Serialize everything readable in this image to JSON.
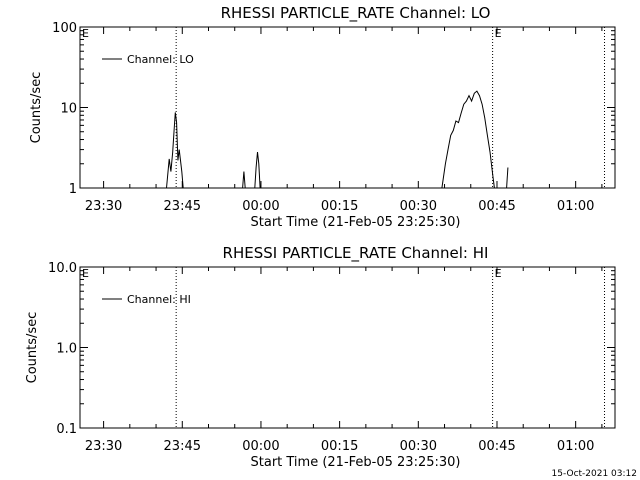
{
  "footer_timestamp": "15-Oct-2021 03:12",
  "chart_data": [
    {
      "type": "line",
      "title": "RHESSI PARTICLE_RATE Channel: LO",
      "xlabel": "Start Time (21-Feb-05 23:25:30)",
      "ylabel": "Counts/sec",
      "y_scale": "log",
      "ylim": [
        1,
        100
      ],
      "y_ticks": [
        "1",
        "10",
        "100"
      ],
      "y_tick_values": [
        1,
        10,
        100
      ],
      "xlim": [
        "23:25:30",
        "01:07:30"
      ],
      "x_ticks": [
        "23:30",
        "23:45",
        "00:00",
        "00:15",
        "00:30",
        "00:45",
        "01:00"
      ],
      "x_tick_times": [
        "23:30:00",
        "23:45:00",
        "00:00:00",
        "00:15:00",
        "00:30:00",
        "00:45:00",
        "01:00:00"
      ],
      "grid": false,
      "legend": "top-left",
      "series": [
        {
          "name": "Channel: LO",
          "color": "#000000",
          "points": [
            [
              "23:42:00",
              1
            ],
            [
              "23:42:30",
              2.3
            ],
            [
              "23:42:50",
              1.6
            ],
            [
              "23:43:10",
              2.8
            ],
            [
              "23:43:25",
              5.0
            ],
            [
              "23:43:40",
              8.7
            ],
            [
              "23:43:55",
              6.5
            ],
            [
              "23:44:10",
              2.2
            ],
            [
              "23:44:25",
              3.0
            ],
            [
              "23:44:40",
              2.2
            ],
            [
              "23:44:55",
              1.6
            ],
            [
              "23:45:10",
              1
            ],
            [
              null,
              null
            ],
            [
              "23:56:30",
              1
            ],
            [
              "23:56:45",
              1.6
            ],
            [
              "23:57:00",
              1
            ],
            [
              null,
              null
            ],
            [
              "23:58:50",
              1
            ],
            [
              "23:59:05",
              1.8
            ],
            [
              "23:59:20",
              2.8
            ],
            [
              "23:59:35",
              2.0
            ],
            [
              "23:59:50",
              1
            ],
            [
              null,
              null
            ],
            [
              "00:34:30",
              1
            ],
            [
              "00:35:10",
              2.0
            ],
            [
              "00:35:40",
              3.0
            ],
            [
              "00:36:10",
              4.5
            ],
            [
              "00:36:40",
              5.2
            ],
            [
              "00:37:10",
              6.8
            ],
            [
              "00:37:40",
              6.5
            ],
            [
              "00:38:10",
              8.5
            ],
            [
              "00:38:40",
              11
            ],
            [
              "00:39:10",
              12
            ],
            [
              "00:39:40",
              14
            ],
            [
              "00:40:10",
              12
            ],
            [
              "00:40:40",
              15
            ],
            [
              "00:41:10",
              16
            ],
            [
              "00:41:40",
              14
            ],
            [
              "00:42:10",
              11
            ],
            [
              "00:42:40",
              7.5
            ],
            [
              "00:43:10",
              4.5
            ],
            [
              "00:43:40",
              2.8
            ],
            [
              "00:44:10",
              1.5
            ],
            [
              "00:44:30",
              1
            ],
            [
              null,
              null
            ],
            [
              "00:46:50",
              1
            ],
            [
              "00:47:05",
              1.8
            ]
          ]
        }
      ],
      "markers": [
        {
          "time": "23:25:30",
          "label": "E",
          "line": false
        },
        {
          "time": "23:43:50",
          "label": "",
          "line": true
        },
        {
          "time": "00:44:10",
          "label": "E",
          "line": true
        },
        {
          "time": "01:05:30",
          "label": "",
          "line": true
        }
      ]
    },
    {
      "type": "line",
      "title": "RHESSI PARTICLE_RATE Channel: HI",
      "xlabel": "Start Time (21-Feb-05 23:25:30)",
      "ylabel": "Counts/sec",
      "y_scale": "log",
      "ylim": [
        0.1,
        10
      ],
      "y_ticks": [
        "0.1",
        "1.0",
        "10.0"
      ],
      "y_tick_values": [
        0.1,
        1,
        10
      ],
      "xlim": [
        "23:25:30",
        "01:07:30"
      ],
      "x_ticks": [
        "23:30",
        "23:45",
        "00:00",
        "00:15",
        "00:30",
        "00:45",
        "01:00"
      ],
      "x_tick_times": [
        "23:30:00",
        "23:45:00",
        "00:00:00",
        "00:15:00",
        "00:30:00",
        "00:45:00",
        "01:00:00"
      ],
      "grid": false,
      "legend": "top-left",
      "series": [
        {
          "name": "Channel: HI",
          "color": "#000000",
          "points": []
        }
      ],
      "markers": [
        {
          "time": "23:25:30",
          "label": "E",
          "line": false
        },
        {
          "time": "23:43:50",
          "label": "",
          "line": true
        },
        {
          "time": "00:44:10",
          "label": "E",
          "line": true
        },
        {
          "time": "01:05:30",
          "label": "",
          "line": true
        }
      ]
    }
  ]
}
